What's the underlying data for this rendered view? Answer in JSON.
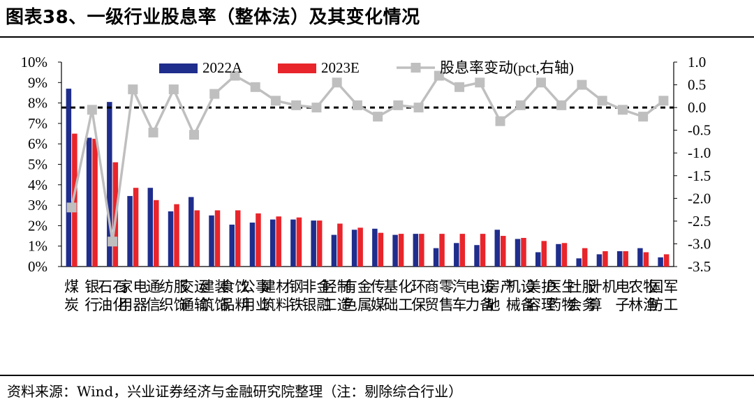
{
  "title": "图表38、一级行业股息率（整体法）及其变化情况",
  "source": "资料来源：Wind，兴业证券经济与金融研究院整理（注：剔除综合行业）",
  "chart_data": {
    "type": "bar+line",
    "categories": [
      "煤炭",
      "银行",
      "石油石化",
      "家用电器",
      "通信",
      "纺织服饰",
      "交通运输",
      "建筑装饰",
      "食品饮料",
      "公用事业",
      "建筑材料",
      "钢铁",
      "非银金融",
      "轻工制造",
      "有色金属",
      "传媒",
      "基础化工",
      "环保",
      "商贸零售",
      "汽车",
      "电力设备",
      "房地产",
      "机械设备",
      "美容护理",
      "医药生物",
      "社会服务",
      "计算机",
      "电子",
      "农林牧渔",
      "国防军工"
    ],
    "series": [
      {
        "name": "2022A",
        "axis": "left",
        "color": "#1F2D8C",
        "values": [
          8.7,
          6.3,
          8.05,
          3.45,
          3.85,
          2.7,
          3.4,
          2.5,
          2.05,
          2.15,
          2.3,
          2.3,
          2.25,
          1.55,
          1.8,
          1.85,
          1.55,
          1.6,
          0.9,
          1.15,
          1.05,
          1.8,
          1.35,
          0.7,
          1.1,
          0.4,
          0.6,
          0.75,
          0.9,
          0.45
        ]
      },
      {
        "name": "2023E",
        "axis": "left",
        "color": "#E8252B",
        "values": [
          6.5,
          6.25,
          5.1,
          3.85,
          3.25,
          3.05,
          2.75,
          2.75,
          2.75,
          2.6,
          2.45,
          2.4,
          2.25,
          2.1,
          1.9,
          1.65,
          1.6,
          1.6,
          1.6,
          1.6,
          1.6,
          1.5,
          1.4,
          1.25,
          1.15,
          0.9,
          0.75,
          0.75,
          0.7,
          0.6
        ]
      },
      {
        "name": "股息率变动(pct,右轴)",
        "axis": "right",
        "color": "#BFBFBF",
        "values": [
          -2.2,
          -0.05,
          -2.95,
          0.4,
          -0.55,
          0.4,
          -0.6,
          0.3,
          0.7,
          0.45,
          0.15,
          0.05,
          0.0,
          0.55,
          0.05,
          -0.2,
          0.05,
          0.0,
          0.7,
          0.45,
          0.55,
          -0.3,
          0.05,
          0.55,
          0.05,
          0.5,
          0.15,
          -0.05,
          -0.2,
          0.15
        ]
      }
    ],
    "y_left": {
      "min": 0,
      "max": 10,
      "step": 1,
      "ticks": [
        "0%",
        "1%",
        "2%",
        "3%",
        "4%",
        "5%",
        "6%",
        "7%",
        "8%",
        "9%",
        "10%"
      ]
    },
    "y_right": {
      "min": -3.5,
      "max": 1.0,
      "step": 0.5,
      "ticks": [
        "-3.5",
        "-3.0",
        "-2.5",
        "-2.0",
        "-1.5",
        "-1.0",
        "-0.5",
        "0.0",
        "0.5",
        "1.0"
      ]
    },
    "reference_line": {
      "axis": "right",
      "value": 0.0,
      "style": "dashed",
      "color": "#000000"
    },
    "legend": [
      "2022A",
      "2023E",
      "股息率变动(pct,右轴)"
    ],
    "legend_position": "top",
    "grid": false
  }
}
